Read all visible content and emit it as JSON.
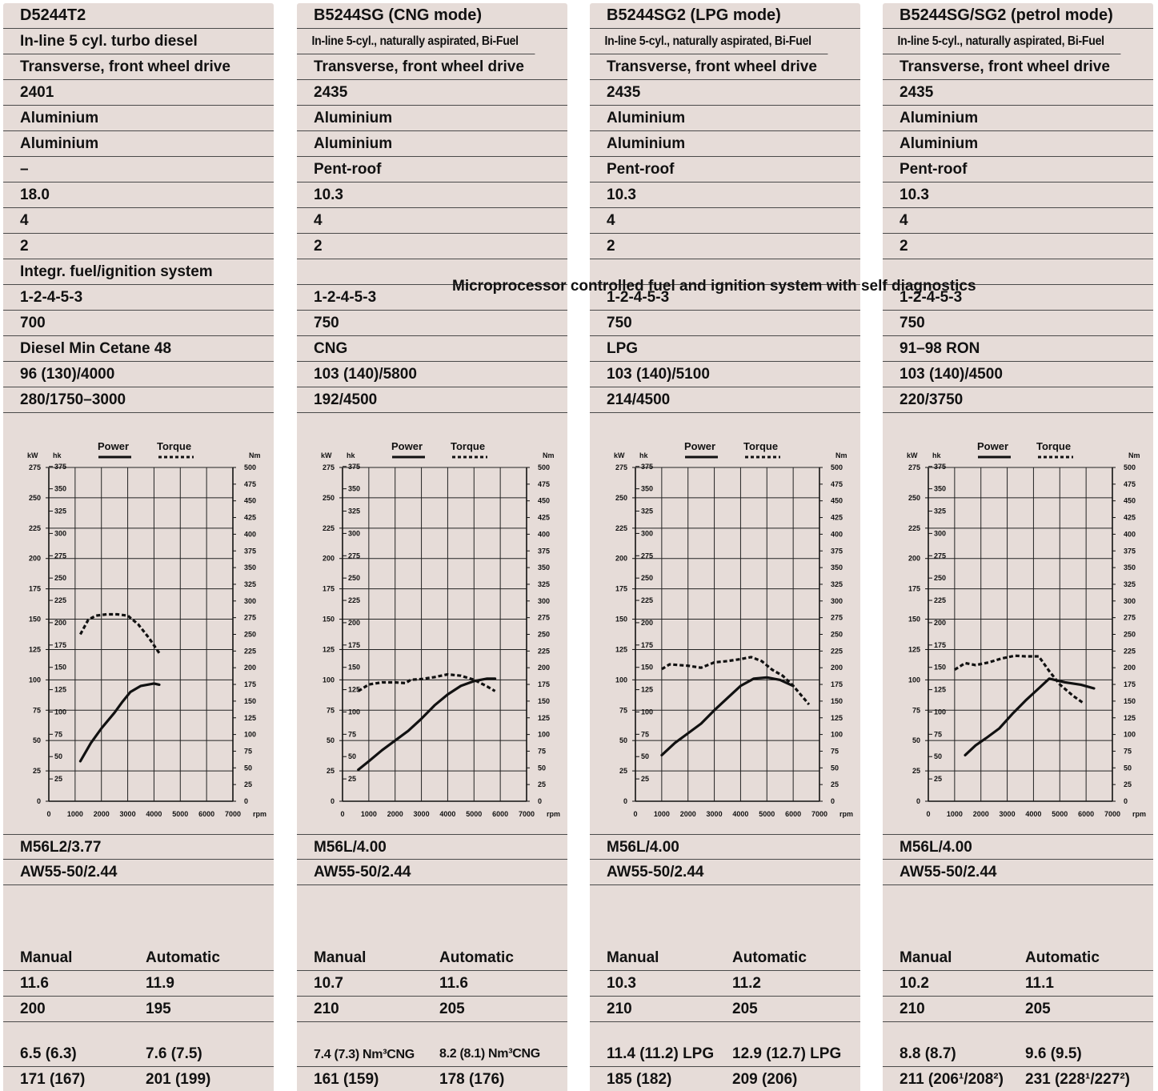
{
  "columns": [
    {
      "rows": [
        "D5244T2",
        "In-line 5 cyl. turbo diesel",
        "Transverse, front wheel drive",
        "2401",
        "Aluminium",
        "Aluminium",
        "–",
        "18.0",
        "4",
        "2",
        "Integr. fuel/ignition system",
        "1-2-4-5-3",
        "700",
        "Diesel Min Cetane 48",
        "96 (130)/4000",
        "280/1750–3000"
      ],
      "gearbox": [
        "M56L2/3.77",
        "AW55-50/2.44"
      ],
      "headers": {
        "manual": "Manual",
        "automatic": "Automatic"
      },
      "perf": [
        [
          "11.6",
          "11.9"
        ],
        [
          "200",
          "195"
        ],
        [
          "6.5 (6.3)",
          "7.6 (7.5)"
        ],
        [
          "171 (167)",
          "201 (199)"
        ]
      ]
    },
    {
      "rows": [
        "B5244SG (CNG mode)",
        "In-line 5-cyl., naturally aspirated, Bi-Fuel",
        "Transverse, front wheel drive",
        "2435",
        "Aluminium",
        "Aluminium",
        "Pent-roof",
        "10.3",
        "4",
        "2",
        "",
        "1-2-4-5-3",
        "750",
        "CNG",
        "103 (140)/5800",
        "192/4500"
      ],
      "gearbox": [
        "M56L/4.00",
        "AW55-50/2.44"
      ],
      "headers": {
        "manual": "Manual",
        "automatic": "Automatic"
      },
      "perf": [
        [
          "10.7",
          "11.6"
        ],
        [
          "210",
          "205"
        ],
        [
          "7.4 (7.3) Nm³CNG",
          "8.2 (8.1) Nm³CNG"
        ],
        [
          "161 (159)",
          "178 (176)"
        ]
      ]
    },
    {
      "rows": [
        "B5244SG2 (LPG mode)",
        "In-line 5-cyl., naturally aspirated, Bi-Fuel",
        "Transverse, front wheel drive",
        "2435",
        "Aluminium",
        "Aluminium",
        "Pent-roof",
        "10.3",
        "4",
        "2",
        "",
        "1-2-4-5-3",
        "750",
        "LPG",
        "103 (140)/5100",
        "214/4500"
      ],
      "gearbox": [
        "M56L/4.00",
        "AW55-50/2.44"
      ],
      "headers": {
        "manual": "Manual",
        "automatic": "Automatic"
      },
      "perf": [
        [
          "10.3",
          "11.2"
        ],
        [
          "210",
          "205"
        ],
        [
          "11.4 (11.2) LPG",
          "12.9 (12.7) LPG"
        ],
        [
          "185 (182)",
          "209 (206)"
        ]
      ]
    },
    {
      "rows": [
        "B5244SG/SG2 (petrol mode)",
        "In-line 5-cyl., naturally aspirated, Bi-Fuel",
        "Transverse, front wheel drive",
        "2435",
        "Aluminium",
        "Aluminium",
        "Pent-roof",
        "10.3",
        "4",
        "2",
        "",
        "1-2-4-5-3",
        "750",
        "91–98 RON",
        "103 (140)/4500",
        "220/3750"
      ],
      "gearbox": [
        "M56L/4.00",
        "AW55-50/2.44"
      ],
      "headers": {
        "manual": "Manual",
        "automatic": "Automatic"
      },
      "perf": [
        [
          "10.2",
          "11.1"
        ],
        [
          "210",
          "205"
        ],
        [
          "8.8 (8.7)",
          "9.6 (9.5)"
        ],
        [
          "211 (206¹/208²)",
          "231 (228¹/227²)"
        ]
      ]
    }
  ],
  "shared_fuel_system": "Microprocessor controlled fuel and ignition system with self diagnostics",
  "chart_data": [
    {
      "type": "line",
      "axis_labels": {
        "left1": "kW",
        "left2": "hk",
        "right": "Nm",
        "x": "rpm"
      },
      "legend": {
        "power": "Power",
        "torque": "Torque"
      },
      "kw_ticks": [
        0,
        25,
        50,
        75,
        100,
        125,
        150,
        175,
        200,
        225,
        250,
        275
      ],
      "hk_ticks": [
        25,
        50,
        75,
        100,
        125,
        150,
        175,
        200,
        225,
        250,
        275,
        300,
        325,
        350,
        375
      ],
      "nm_ticks": [
        0,
        25,
        50,
        75,
        100,
        125,
        150,
        175,
        200,
        225,
        250,
        275,
        300,
        325,
        350,
        375,
        400,
        425,
        450,
        475,
        500
      ],
      "rpm_ticks": [
        0,
        1000,
        2000,
        3000,
        4000,
        5000,
        6000,
        7000
      ],
      "ylim_kw": [
        0,
        275
      ],
      "ylim_nm": [
        0,
        500
      ],
      "xlim": [
        0,
        7000
      ],
      "series": [
        {
          "name": "Power",
          "unit": "kW",
          "x": [
            1200,
            1600,
            2000,
            2500,
            2800,
            3100,
            3500,
            4000,
            4200
          ],
          "y": [
            33,
            48,
            60,
            73,
            82,
            90,
            95,
            97,
            96
          ]
        },
        {
          "name": "Torque",
          "unit": "Nm",
          "x": [
            1200,
            1500,
            1800,
            2200,
            2600,
            3000,
            3400,
            3800,
            4200
          ],
          "y": [
            250,
            272,
            278,
            280,
            280,
            278,
            265,
            245,
            222
          ]
        }
      ]
    },
    {
      "type": "line",
      "axis_labels": {
        "left1": "kW",
        "left2": "hk",
        "right": "Nm",
        "x": "rpm"
      },
      "legend": {
        "power": "Power",
        "torque": "Torque"
      },
      "kw_ticks": [
        0,
        25,
        50,
        75,
        100,
        125,
        150,
        175,
        200,
        225,
        250,
        275
      ],
      "hk_ticks": [
        25,
        50,
        75,
        100,
        125,
        150,
        175,
        200,
        225,
        250,
        275,
        300,
        325,
        350,
        375
      ],
      "nm_ticks": [
        0,
        25,
        50,
        75,
        100,
        125,
        150,
        175,
        200,
        225,
        250,
        275,
        300,
        325,
        350,
        375,
        400,
        425,
        450,
        475,
        500
      ],
      "rpm_ticks": [
        0,
        1000,
        2000,
        3000,
        4000,
        5000,
        6000,
        7000
      ],
      "ylim_kw": [
        0,
        275
      ],
      "ylim_nm": [
        0,
        500
      ],
      "xlim": [
        0,
        7000
      ],
      "series": [
        {
          "name": "Power",
          "unit": "kW",
          "x": [
            600,
            1000,
            1500,
            2000,
            2500,
            3000,
            3500,
            4000,
            4500,
            5000,
            5500,
            5800
          ],
          "y": [
            26,
            33,
            42,
            50,
            58,
            68,
            79,
            88,
            95,
            99,
            101,
            101
          ]
        },
        {
          "name": "Torque",
          "unit": "Nm",
          "x": [
            600,
            1000,
            1500,
            2000,
            2400,
            2600,
            3000,
            3500,
            4000,
            4500,
            5000,
            5500,
            5800
          ],
          "y": [
            165,
            175,
            178,
            178,
            177,
            182,
            183,
            186,
            190,
            188,
            182,
            172,
            165
          ]
        }
      ]
    },
    {
      "type": "line",
      "axis_labels": {
        "left1": "kW",
        "left2": "hk",
        "right": "Nm",
        "x": "rpm"
      },
      "legend": {
        "power": "Power",
        "torque": "Torque"
      },
      "kw_ticks": [
        0,
        25,
        50,
        75,
        100,
        125,
        150,
        175,
        200,
        225,
        250,
        275
      ],
      "hk_ticks": [
        25,
        50,
        75,
        100,
        125,
        150,
        175,
        200,
        225,
        250,
        275,
        300,
        325,
        350,
        375
      ],
      "nm_ticks": [
        0,
        25,
        50,
        75,
        100,
        125,
        150,
        175,
        200,
        225,
        250,
        275,
        300,
        325,
        350,
        375,
        400,
        425,
        450,
        475,
        500
      ],
      "rpm_ticks": [
        0,
        1000,
        2000,
        3000,
        4000,
        5000,
        6000,
        7000
      ],
      "ylim_kw": [
        0,
        275
      ],
      "ylim_nm": [
        0,
        500
      ],
      "xlim": [
        0,
        7000
      ],
      "series": [
        {
          "name": "Power",
          "unit": "kW",
          "x": [
            1000,
            1500,
            2000,
            2500,
            3000,
            3500,
            4000,
            4500,
            5000,
            5500,
            6000
          ],
          "y": [
            38,
            48,
            56,
            64,
            75,
            85,
            95,
            101,
            102,
            100,
            95
          ]
        },
        {
          "name": "Torque",
          "unit": "Nm",
          "x": [
            1000,
            1300,
            2000,
            2500,
            3000,
            3500,
            4000,
            4400,
            4800,
            5200,
            5600,
            6000,
            6600
          ],
          "y": [
            198,
            205,
            203,
            200,
            208,
            210,
            213,
            216,
            210,
            197,
            188,
            173,
            145
          ]
        }
      ]
    },
    {
      "type": "line",
      "axis_labels": {
        "left1": "kW",
        "left2": "hk",
        "right": "Nm",
        "x": "rpm"
      },
      "legend": {
        "power": "Power",
        "torque": "Torque"
      },
      "kw_ticks": [
        0,
        25,
        50,
        75,
        100,
        125,
        150,
        175,
        200,
        225,
        250,
        275
      ],
      "hk_ticks": [
        25,
        50,
        75,
        100,
        125,
        150,
        175,
        200,
        225,
        250,
        275,
        300,
        325,
        350,
        375
      ],
      "nm_ticks": [
        0,
        25,
        50,
        75,
        100,
        125,
        150,
        175,
        200,
        225,
        250,
        275,
        300,
        325,
        350,
        375,
        400,
        425,
        450,
        475,
        500
      ],
      "rpm_ticks": [
        0,
        1000,
        2000,
        3000,
        4000,
        5000,
        6000,
        7000
      ],
      "ylim_kw": [
        0,
        275
      ],
      "ylim_nm": [
        0,
        500
      ],
      "xlim": [
        0,
        7000
      ],
      "series": [
        {
          "name": "Power",
          "unit": "kW",
          "x": [
            1400,
            1800,
            2200,
            2700,
            3200,
            3700,
            4200,
            4600,
            5200,
            5800,
            6300
          ],
          "y": [
            38,
            46,
            52,
            60,
            72,
            83,
            93,
            101,
            98,
            96,
            93
          ]
        },
        {
          "name": "Torque",
          "unit": "Nm",
          "x": [
            1000,
            1400,
            1800,
            2300,
            2800,
            3300,
            3700,
            4200,
            4600,
            5000,
            5500,
            5900
          ],
          "y": [
            197,
            207,
            204,
            208,
            214,
            218,
            217,
            217,
            195,
            175,
            158,
            147
          ]
        }
      ]
    }
  ]
}
